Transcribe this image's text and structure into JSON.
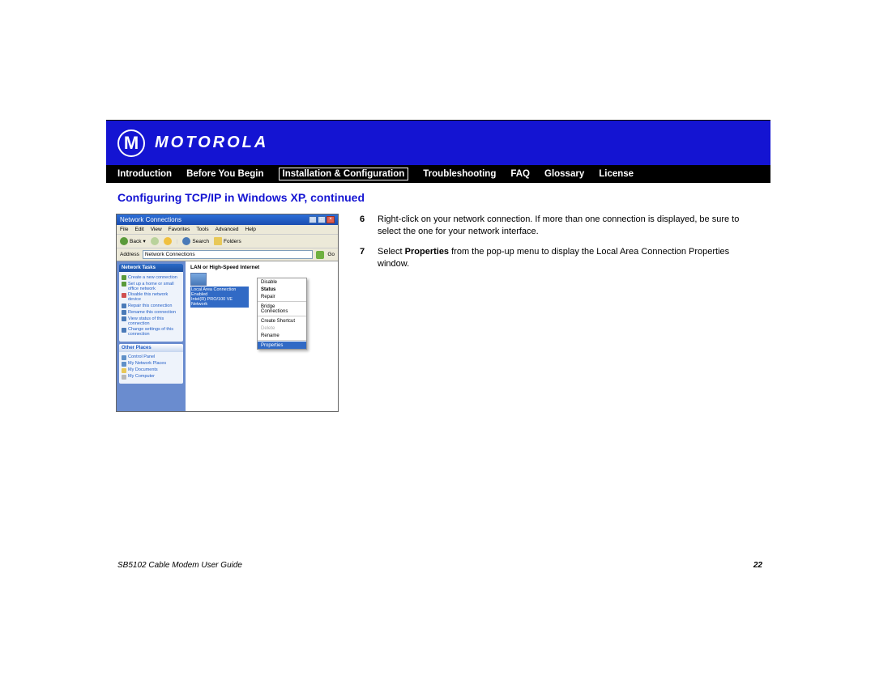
{
  "header": {
    "brand": "MOTOROLA",
    "brand_color": "#1414d2"
  },
  "nav": {
    "items": [
      {
        "label": "Introduction",
        "active": false
      },
      {
        "label": "Before You Begin",
        "active": false
      },
      {
        "label": "Installation & Configuration",
        "active": true
      },
      {
        "label": "Troubleshooting",
        "active": false
      },
      {
        "label": "FAQ",
        "active": false
      },
      {
        "label": "Glossary",
        "active": false
      },
      {
        "label": "License",
        "active": false
      }
    ]
  },
  "section_title": "Configuring TCP/IP in Windows XP, continued",
  "steps": [
    {
      "num": "6",
      "text": "Right-click on your network connection. If more than one connection is displayed, be sure to select the one for your network interface."
    },
    {
      "num": "7",
      "html": "Select <b>Properties</b> from the pop-up menu to display the Local Area Connection Properties window."
    }
  ],
  "footer": {
    "guide": "SB5102 Cable Modem User Guide",
    "page": "22"
  },
  "screenshot": {
    "title": "Network Connections",
    "menus": [
      "File",
      "Edit",
      "View",
      "Favorites",
      "Tools",
      "Advanced",
      "Help"
    ],
    "toolbar": {
      "back": "Back",
      "search": "Search",
      "folders": "Folders"
    },
    "address_label": "Address",
    "address_value": "Network Connections",
    "go": "Go",
    "side_panels": {
      "tasks_title": "Network Tasks",
      "tasks": [
        "Create a new connection",
        "Set up a home or small office network",
        "Disable this network device",
        "Repair this connection",
        "Rename this connection",
        "View status of this connection",
        "Change settings of this connection"
      ],
      "other_title": "Other Places",
      "other": [
        "Control Panel",
        "My Network Places",
        "My Documents",
        "My Computer"
      ]
    },
    "category": "LAN or High-Speed Internet",
    "connection": {
      "name": "Local Area Connection",
      "status": "Enabled",
      "adapter": "Intel(R) PRO/100 VE Network"
    },
    "context": [
      {
        "label": "Disable",
        "type": "normal"
      },
      {
        "label": "Status",
        "type": "bold"
      },
      {
        "label": "Repair",
        "type": "normal"
      },
      {
        "sep": true
      },
      {
        "label": "Bridge Connections",
        "type": "normal"
      },
      {
        "sep": true
      },
      {
        "label": "Create Shortcut",
        "type": "normal"
      },
      {
        "label": "Delete",
        "type": "dis"
      },
      {
        "label": "Rename",
        "type": "normal"
      },
      {
        "sep": true
      },
      {
        "label": "Properties",
        "type": "sel"
      }
    ]
  },
  "colors": {
    "header_bg": "#1414d2",
    "nav_bg": "#000000",
    "title_color": "#1414d2",
    "xp_blue": "#316ac5",
    "xp_side": "#6a8ccf",
    "xp_link": "#215dc6",
    "xp_chrome": "#ece9d8"
  }
}
